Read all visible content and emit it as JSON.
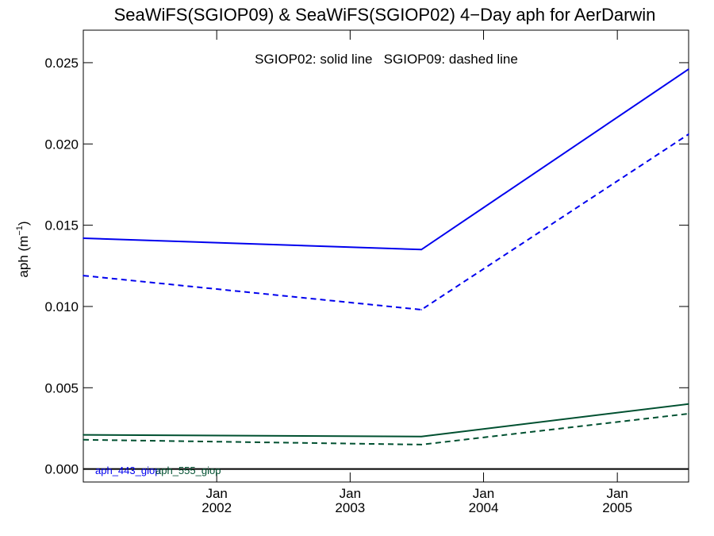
{
  "chart_data": {
    "type": "line",
    "title": "SeaWiFS(SGIOP09) & SeaWiFS(SGIOP02) 4−Day aph for AerDarwin",
    "annotation": "SGIOP02: solid line   SGIOP09: dashed line",
    "ylabel": "aph (m",
    "ylabel_sup": "−1",
    "ylabel_close": ")",
    "ylim": [
      -0.0008,
      0.027
    ],
    "y_ticks": [
      0.0,
      0.005,
      0.01,
      0.015,
      0.02,
      0.025
    ],
    "y_tick_labels": [
      "0.000",
      "0.005",
      "0.010",
      "0.015",
      "0.020",
      "0.025"
    ],
    "xlim": [
      "2001-01-01",
      "2005-07-15"
    ],
    "x_ticks": [
      {
        "date": "2002-01-01",
        "month": "Jan",
        "year": "2002"
      },
      {
        "date": "2003-01-01",
        "month": "Jan",
        "year": "2003"
      },
      {
        "date": "2004-01-01",
        "month": "Jan",
        "year": "2004"
      },
      {
        "date": "2005-01-01",
        "month": "Jan",
        "year": "2005"
      }
    ],
    "series": [
      {
        "name": "aph_443_giop",
        "color": "#0000ee",
        "style": "solid",
        "x": [
          "2001-01-01",
          "2003-07-15",
          "2005-07-15"
        ],
        "y": [
          0.0142,
          0.0135,
          0.0246
        ]
      },
      {
        "color": "#0000ee",
        "style": "dashed",
        "x": [
          "2001-01-01",
          "2003-07-15",
          "2005-07-15"
        ],
        "y": [
          0.0119,
          0.0098,
          0.0206
        ]
      },
      {
        "name": "aph_555_giop",
        "color": "#005030",
        "style": "solid",
        "x": [
          "2001-01-01",
          "2003-07-15",
          "2005-07-15"
        ],
        "y": [
          0.0021,
          0.002,
          0.004
        ]
      },
      {
        "color": "#005030",
        "style": "dashed",
        "x": [
          "2001-01-01",
          "2003-07-15",
          "2005-07-15"
        ],
        "y": [
          0.0018,
          0.0015,
          0.0034
        ]
      }
    ],
    "reference_line": {
      "y": 0.0,
      "color": "#000000"
    },
    "legend": [
      "aph_443_giop",
      "aph_555_giop"
    ],
    "legend_colors": [
      "#0000ee",
      "#005030"
    ],
    "legend_placement": "bottom-left",
    "grid": false
  }
}
